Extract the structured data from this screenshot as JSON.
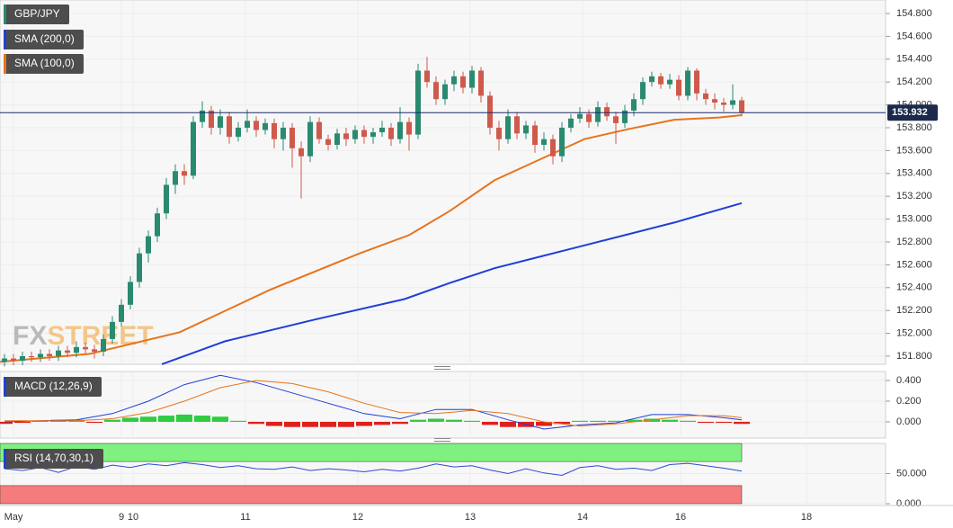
{
  "chart_data": [
    {
      "type": "candlestick",
      "title": "GBP/JPY",
      "watermark": [
        "FX",
        "STREET"
      ],
      "colors": {
        "up": "#2a8a70",
        "down": "#cf5a4c"
      },
      "xlim": [
        -0.5,
        98
      ],
      "ylim": [
        151.729,
        154.918
      ],
      "xticks": [
        {
          "value": 1,
          "label": "May"
        },
        {
          "value": 13,
          "label": "9"
        },
        {
          "value": 14.3,
          "label": "10"
        },
        {
          "value": 26.8,
          "label": "11"
        },
        {
          "value": 39.3,
          "label": "12"
        },
        {
          "value": 51.8,
          "label": "13"
        },
        {
          "value": 64.3,
          "label": "14"
        },
        {
          "value": 75.2,
          "label": "16"
        },
        {
          "value": 89.2,
          "label": "18"
        }
      ],
      "yticks": [
        {
          "value": 151.8,
          "label": "151.800"
        },
        {
          "value": 152,
          "label": "152.000"
        },
        {
          "value": 152.2,
          "label": "152.200"
        },
        {
          "value": 152.4,
          "label": "152.400"
        },
        {
          "value": 152.6,
          "label": "152.600"
        },
        {
          "value": 152.8,
          "label": "152.800"
        },
        {
          "value": 153,
          "label": "153.000"
        },
        {
          "value": 153.2,
          "label": "153.200"
        },
        {
          "value": 153.4,
          "label": "153.400"
        },
        {
          "value": 153.6,
          "label": "153.600"
        },
        {
          "value": 153.8,
          "label": "153.800"
        },
        {
          "value": 154,
          "label": "154.000"
        },
        {
          "value": 154.2,
          "label": "154.200"
        },
        {
          "value": 154.4,
          "label": "154.400"
        },
        {
          "value": 154.6,
          "label": "154.600"
        },
        {
          "value": 154.8,
          "label": "154.800"
        }
      ],
      "grid": true,
      "last_price": 153.932,
      "candles": {
        "open": [
          151.75,
          151.78,
          151.76,
          151.8,
          151.79,
          151.82,
          151.8,
          151.85,
          151.83,
          151.88,
          151.86,
          151.84,
          151.95,
          152.1,
          152.25,
          152.45,
          152.7,
          152.85,
          153.05,
          153.3,
          153.42,
          153.38,
          153.85,
          153.95,
          153.8,
          153.9,
          153.72,
          153.8,
          153.86,
          153.78,
          153.84,
          153.7,
          153.8,
          153.62,
          153.55,
          153.85,
          153.7,
          153.65,
          153.75,
          153.7,
          153.78,
          153.72,
          153.76,
          153.8,
          153.7,
          153.85,
          153.74,
          154.3,
          154.2,
          154.05,
          154.18,
          154.25,
          154.15,
          154.3,
          154.08,
          153.8,
          153.7,
          153.9,
          153.75,
          153.82,
          153.65,
          153.7,
          153.55,
          153.8,
          153.88,
          153.92,
          153.85,
          153.98,
          153.9,
          153.84,
          153.95,
          154.05,
          154.2,
          154.25,
          154.18,
          154.22,
          154.08,
          154.3,
          154.1,
          154.05,
          154.02,
          154.0,
          154.04
        ],
        "high": [
          151.82,
          151.82,
          151.84,
          151.84,
          151.86,
          151.86,
          151.89,
          151.89,
          151.93,
          151.92,
          151.9,
          151.99,
          152.15,
          152.3,
          152.5,
          152.75,
          152.9,
          153.1,
          153.36,
          153.48,
          153.48,
          153.9,
          154.03,
          153.99,
          153.96,
          153.94,
          153.85,
          153.96,
          153.9,
          153.88,
          153.88,
          153.85,
          153.84,
          153.68,
          153.9,
          153.89,
          153.74,
          153.79,
          153.8,
          153.82,
          153.82,
          153.8,
          153.86,
          153.84,
          153.98,
          153.89,
          154.36,
          154.42,
          154.25,
          154.22,
          154.3,
          154.29,
          154.34,
          154.33,
          154.12,
          153.86,
          153.96,
          153.94,
          153.86,
          153.86,
          153.76,
          153.74,
          153.85,
          153.92,
          153.98,
          153.96,
          154.03,
          154.02,
          153.94,
          154.0,
          154.1,
          154.24,
          154.29,
          154.28,
          154.27,
          154.26,
          154.33,
          154.32,
          154.14,
          154.1,
          154.06,
          154.18,
          154.07
        ],
        "low": [
          151.71,
          151.72,
          151.72,
          151.75,
          151.75,
          151.76,
          151.76,
          151.79,
          151.79,
          151.82,
          151.78,
          151.8,
          151.91,
          152.06,
          152.21,
          152.4,
          152.62,
          152.8,
          153.0,
          153.22,
          153.3,
          153.35,
          153.8,
          153.74,
          153.74,
          153.66,
          153.68,
          153.76,
          153.72,
          153.74,
          153.62,
          153.6,
          153.45,
          153.18,
          153.5,
          153.66,
          153.6,
          153.61,
          153.64,
          153.66,
          153.66,
          153.66,
          153.72,
          153.64,
          153.66,
          153.6,
          153.7,
          154.15,
          154.0,
          154.0,
          154.12,
          154.1,
          154.1,
          154.02,
          153.74,
          153.6,
          153.66,
          153.7,
          153.7,
          153.58,
          153.6,
          153.48,
          153.5,
          153.76,
          153.84,
          153.8,
          153.81,
          153.86,
          153.66,
          153.8,
          153.9,
          154.0,
          154.16,
          154.14,
          154.14,
          154.04,
          154.04,
          154.04,
          154.0,
          153.96,
          153.94,
          153.96,
          153.9
        ],
        "close": [
          151.78,
          151.76,
          151.8,
          151.79,
          151.82,
          151.8,
          151.85,
          151.83,
          151.88,
          151.86,
          151.84,
          151.95,
          152.1,
          152.25,
          152.45,
          152.7,
          152.85,
          153.05,
          153.3,
          153.42,
          153.38,
          153.85,
          153.95,
          153.8,
          153.9,
          153.72,
          153.8,
          153.86,
          153.78,
          153.84,
          153.7,
          153.8,
          153.62,
          153.55,
          153.85,
          153.7,
          153.65,
          153.75,
          153.7,
          153.78,
          153.72,
          153.76,
          153.8,
          153.7,
          153.85,
          153.74,
          154.3,
          154.2,
          154.05,
          154.18,
          154.25,
          154.15,
          154.3,
          154.08,
          153.8,
          153.7,
          153.9,
          153.75,
          153.82,
          153.65,
          153.7,
          153.55,
          153.8,
          153.88,
          153.92,
          153.85,
          153.98,
          153.9,
          153.84,
          153.95,
          154.05,
          154.2,
          154.25,
          154.18,
          154.22,
          154.08,
          154.3,
          154.1,
          154.05,
          154.02,
          154.0,
          154.04,
          153.93
        ]
      },
      "series": [
        {
          "name": "SMA (200,0)",
          "color": "#1f3fd6",
          "x": [
            17.5,
            24.5,
            34.5,
            44.5,
            49.5,
            54.5,
            59.5,
            69.5,
            74.5,
            82
          ],
          "values": [
            151.73,
            151.93,
            152.12,
            152.3,
            152.44,
            152.57,
            152.67,
            152.87,
            152.97,
            153.14
          ]
        },
        {
          "name": "SMA (100,0)",
          "color": "#e8731c",
          "x": [
            -0.5,
            9.5,
            19.5,
            29.5,
            39.5,
            45,
            49.5,
            54.5,
            59.5,
            64.5,
            69.5,
            74.5,
            79.5,
            82
          ],
          "values": [
            151.75,
            151.82,
            152.01,
            152.38,
            152.7,
            152.86,
            153.07,
            153.34,
            153.52,
            153.7,
            153.79,
            153.87,
            153.89,
            153.91
          ]
        }
      ]
    },
    {
      "type": "macd",
      "title": "MACD (12,26,9)",
      "ylim": [
        -0.157,
        0.487
      ],
      "yticks": [
        {
          "value": 0,
          "label": "0.000"
        },
        {
          "value": 0.2,
          "label": "0.200"
        },
        {
          "value": 0.4,
          "label": "0.400"
        }
      ],
      "series": [
        {
          "color": "#1f3fd6",
          "x": [
            0,
            4,
            8,
            12,
            16,
            20,
            24,
            28,
            32,
            36,
            40,
            44,
            48,
            52,
            56,
            60,
            64,
            68,
            72,
            76,
            80,
            82
          ],
          "values": [
            0.0,
            0.01,
            0.02,
            0.08,
            0.2,
            0.36,
            0.45,
            0.38,
            0.28,
            0.18,
            0.08,
            0.03,
            0.12,
            0.12,
            0.02,
            -0.07,
            -0.03,
            -0.01,
            0.07,
            0.07,
            0.04,
            0.02
          ]
        },
        {
          "color": "#e8731c",
          "x": [
            0,
            4,
            8,
            12,
            16,
            20,
            24,
            28,
            32,
            36,
            40,
            44,
            48,
            52,
            56,
            60,
            64,
            68,
            72,
            76,
            80,
            82
          ],
          "values": [
            0.01,
            0.01,
            0.01,
            0.03,
            0.09,
            0.2,
            0.33,
            0.4,
            0.37,
            0.29,
            0.18,
            0.09,
            0.08,
            0.11,
            0.08,
            0.0,
            -0.04,
            -0.02,
            0.02,
            0.06,
            0.06,
            0.04
          ]
        }
      ],
      "histogram": {
        "colors": {
          "up": "#2ecc40",
          "down": "#e0201b"
        },
        "x": [
          0,
          2,
          4,
          6,
          8,
          10,
          12,
          14,
          16,
          18,
          20,
          22,
          24,
          26,
          28,
          30,
          32,
          34,
          36,
          38,
          40,
          42,
          44,
          46,
          48,
          50,
          52,
          54,
          56,
          58,
          60,
          62,
          64,
          66,
          68,
          70,
          72,
          74,
          76,
          78,
          80,
          82
        ],
        "values": [
          -0.02,
          -0.01,
          0.01,
          0.02,
          0.02,
          -0.01,
          0.02,
          0.04,
          0.05,
          0.06,
          0.07,
          0.06,
          0.05,
          0.01,
          -0.02,
          -0.04,
          -0.05,
          -0.05,
          -0.05,
          -0.05,
          -0.04,
          -0.03,
          -0.02,
          0.02,
          0.03,
          0.02,
          0.01,
          -0.03,
          -0.05,
          -0.05,
          -0.04,
          -0.02,
          0.01,
          0.01,
          0.01,
          0.02,
          0.03,
          0.02,
          0.01,
          -0.01,
          -0.01,
          -0.02
        ]
      }
    },
    {
      "type": "rsi",
      "title": "RSI (14,70,30,1)",
      "ylim": [
        0,
        100
      ],
      "yticks": [
        {
          "value": 0,
          "label": "0.000"
        },
        {
          "value": 50,
          "label": "50.000"
        }
      ],
      "overbought": 70,
      "oversold": 30,
      "zone_colors": {
        "overbought": "#80f080",
        "oversold": "#f47c7c"
      },
      "series": [
        {
          "color": "#2a4ad0",
          "x": [
            0,
            2,
            4,
            6,
            8,
            10,
            12,
            14,
            16,
            18,
            20,
            22,
            24,
            26,
            28,
            30,
            32,
            34,
            36,
            38,
            40,
            42,
            44,
            46,
            48,
            50,
            52,
            54,
            56,
            58,
            60,
            62,
            64,
            66,
            68,
            70,
            72,
            74,
            76,
            78,
            80,
            82
          ],
          "values": [
            58,
            55,
            60,
            52,
            62,
            57,
            64,
            60,
            66,
            63,
            68,
            65,
            60,
            63,
            58,
            57,
            61,
            55,
            58,
            56,
            53,
            57,
            54,
            59,
            66,
            61,
            63,
            56,
            50,
            58,
            51,
            47,
            60,
            63,
            57,
            59,
            55,
            65,
            67,
            63,
            59,
            54
          ]
        }
      ]
    }
  ]
}
